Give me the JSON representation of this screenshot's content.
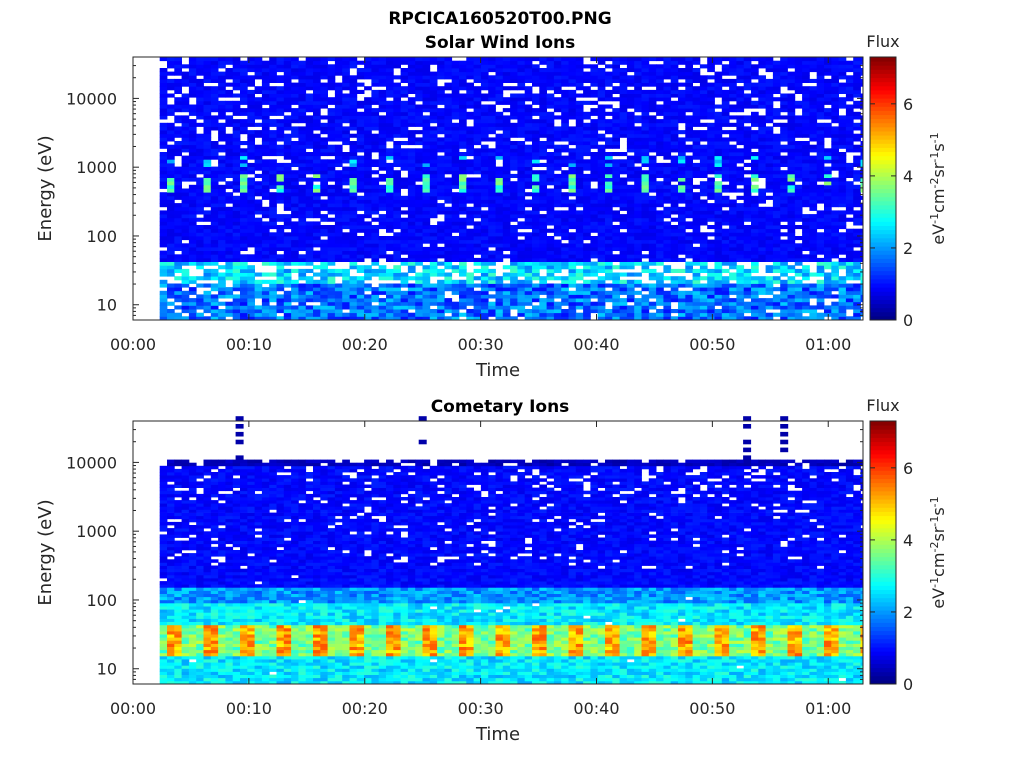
{
  "figure": {
    "main_title": "RPCICA160520T00.PNG"
  },
  "chart_data": [
    {
      "type": "heatmap",
      "title": "Solar Wind Ions",
      "xlabel": "Time",
      "ylabel": "Energy (eV)",
      "x_ticks": [
        "00:00",
        "00:10",
        "00:20",
        "00:30",
        "00:40",
        "00:50",
        "01:00"
      ],
      "x_tick_minutes": [
        0,
        10,
        20,
        30,
        40,
        50,
        60
      ],
      "xlim_minutes": [
        0,
        63
      ],
      "data_start_minute": 2.3,
      "y_scale": "log",
      "ylim": [
        6,
        40000
      ],
      "y_ticks": [
        "10",
        "100",
        "1000",
        "10000"
      ],
      "y_tick_values": [
        10,
        100,
        1000,
        10000
      ],
      "colorbar": {
        "label": "Flux",
        "unit_label": "eV-1cm-2sr-1s-1",
        "range": [
          0,
          7.3
        ],
        "ticks": [
          "0",
          "2",
          "4",
          "6"
        ],
        "tick_values": [
          0,
          2,
          4,
          6
        ],
        "colormap": "jet"
      },
      "data_upper_energy": 40000,
      "features": [
        {
          "description": "background flux",
          "value": 1.0
        },
        {
          "description": "periodic bursts near 600 eV",
          "energy": 600,
          "value": 3.4
        },
        {
          "description": "enhanced flux near 1200 eV",
          "energy": 1200,
          "value": 2.3
        },
        {
          "description": "band near 30 eV",
          "energy": 30,
          "value": 2.6
        }
      ]
    },
    {
      "type": "heatmap",
      "title": "Cometary Ions",
      "xlabel": "Time",
      "ylabel": "Energy (eV)",
      "x_ticks": [
        "00:00",
        "00:10",
        "00:20",
        "00:30",
        "00:40",
        "00:50",
        "01:00"
      ],
      "x_tick_minutes": [
        0,
        10,
        20,
        30,
        40,
        50,
        60
      ],
      "xlim_minutes": [
        0,
        63
      ],
      "data_start_minute": 2.3,
      "y_scale": "log",
      "ylim": [
        6,
        40000
      ],
      "y_ticks": [
        "10",
        "100",
        "1000",
        "10000"
      ],
      "y_tick_values": [
        10,
        100,
        1000,
        10000
      ],
      "colorbar": {
        "label": "Flux",
        "unit_label": "eV-1cm-2sr-1s-1",
        "range": [
          0,
          7.3
        ],
        "ticks": [
          "0",
          "2",
          "4",
          "6"
        ],
        "tick_values": [
          0,
          2,
          4,
          6
        ],
        "colormap": "jet"
      },
      "data_upper_energy": 11000,
      "features": [
        {
          "description": "background flux",
          "value": 1.0
        },
        {
          "description": "pulsed peak near 25 eV",
          "energy": 25,
          "value": 5.3
        },
        {
          "description": "continuous band 10-120 eV",
          "energy": 60,
          "value": 2.8
        }
      ],
      "high_energy_spikes_minutes": [
        9.2,
        25.0,
        53.0,
        56.2
      ]
    }
  ],
  "colors": {
    "background": "#ffffff",
    "axis": "#262626",
    "title": "#000000"
  }
}
